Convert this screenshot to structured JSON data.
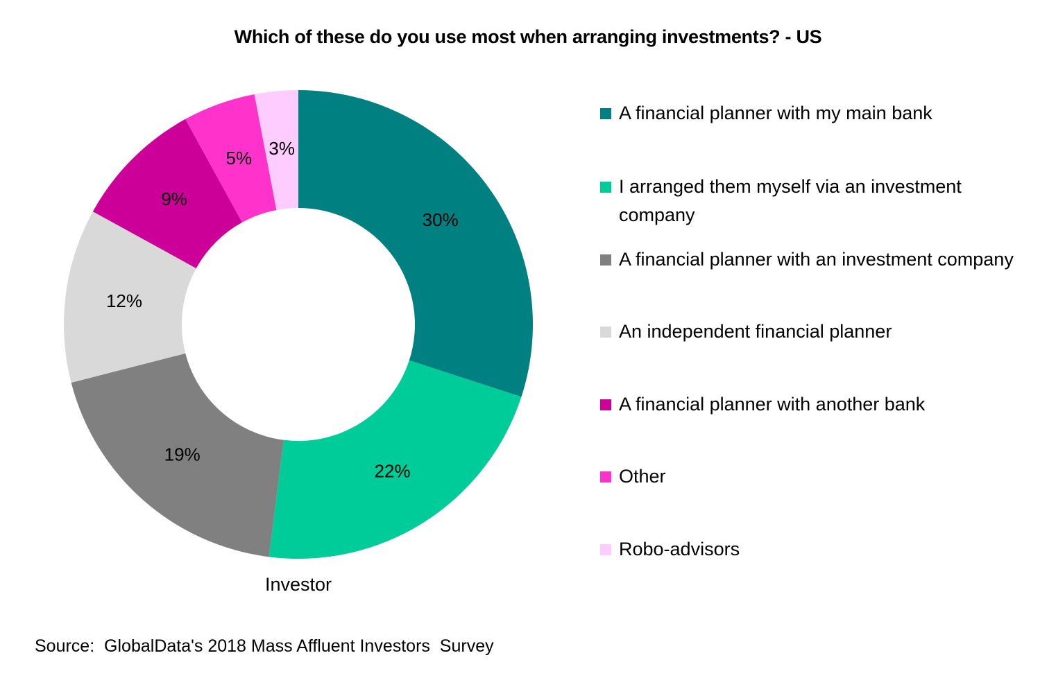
{
  "chart_data": {
    "type": "pie",
    "subtype": "donut",
    "title": "Which of these do you use most when arranging investments? - US",
    "category_label": "Investor",
    "categories": [
      "A financial planner with my main bank",
      "I arranged them myself via an investment company",
      "A financial planner with an investment company",
      "An independent financial planner",
      "A financial planner with another bank",
      "Other",
      "Robo-advisors"
    ],
    "values": [
      30,
      22,
      19,
      12,
      9,
      5,
      3
    ],
    "data_labels": [
      "30%",
      "22%",
      "19%",
      "12%",
      "9%",
      "5%",
      "3%"
    ],
    "colors": [
      "#008080",
      "#00CC99",
      "#808080",
      "#D9D9D9",
      "#CC0099",
      "#FF33CC",
      "#FFCCFF"
    ],
    "unit": "%",
    "start_angle": "12 o'clock",
    "direction": "clockwise",
    "legend_position": "right",
    "source": "Source:  GlobalData's 2018 Mass Affluent Investors  Survey"
  },
  "title": "Which of these do you use most when arranging investments? - US",
  "category_label": "Investor",
  "legend": {
    "items": [
      {
        "label": "A financial planner with my main bank",
        "color": "#008080"
      },
      {
        "label": "I arranged them myself via an investment company",
        "color": "#00CC99"
      },
      {
        "label": "A financial planner with an investment company",
        "color": "#808080"
      },
      {
        "label": "An independent financial planner",
        "color": "#D9D9D9"
      },
      {
        "label": "A financial planner with another bank",
        "color": "#CC0099"
      },
      {
        "label": "Other",
        "color": "#FF33CC"
      },
      {
        "label": "Robo-advisors",
        "color": "#FFCCFF"
      }
    ]
  },
  "source": "Source:  GlobalData's 2018 Mass Affluent Investors  Survey"
}
